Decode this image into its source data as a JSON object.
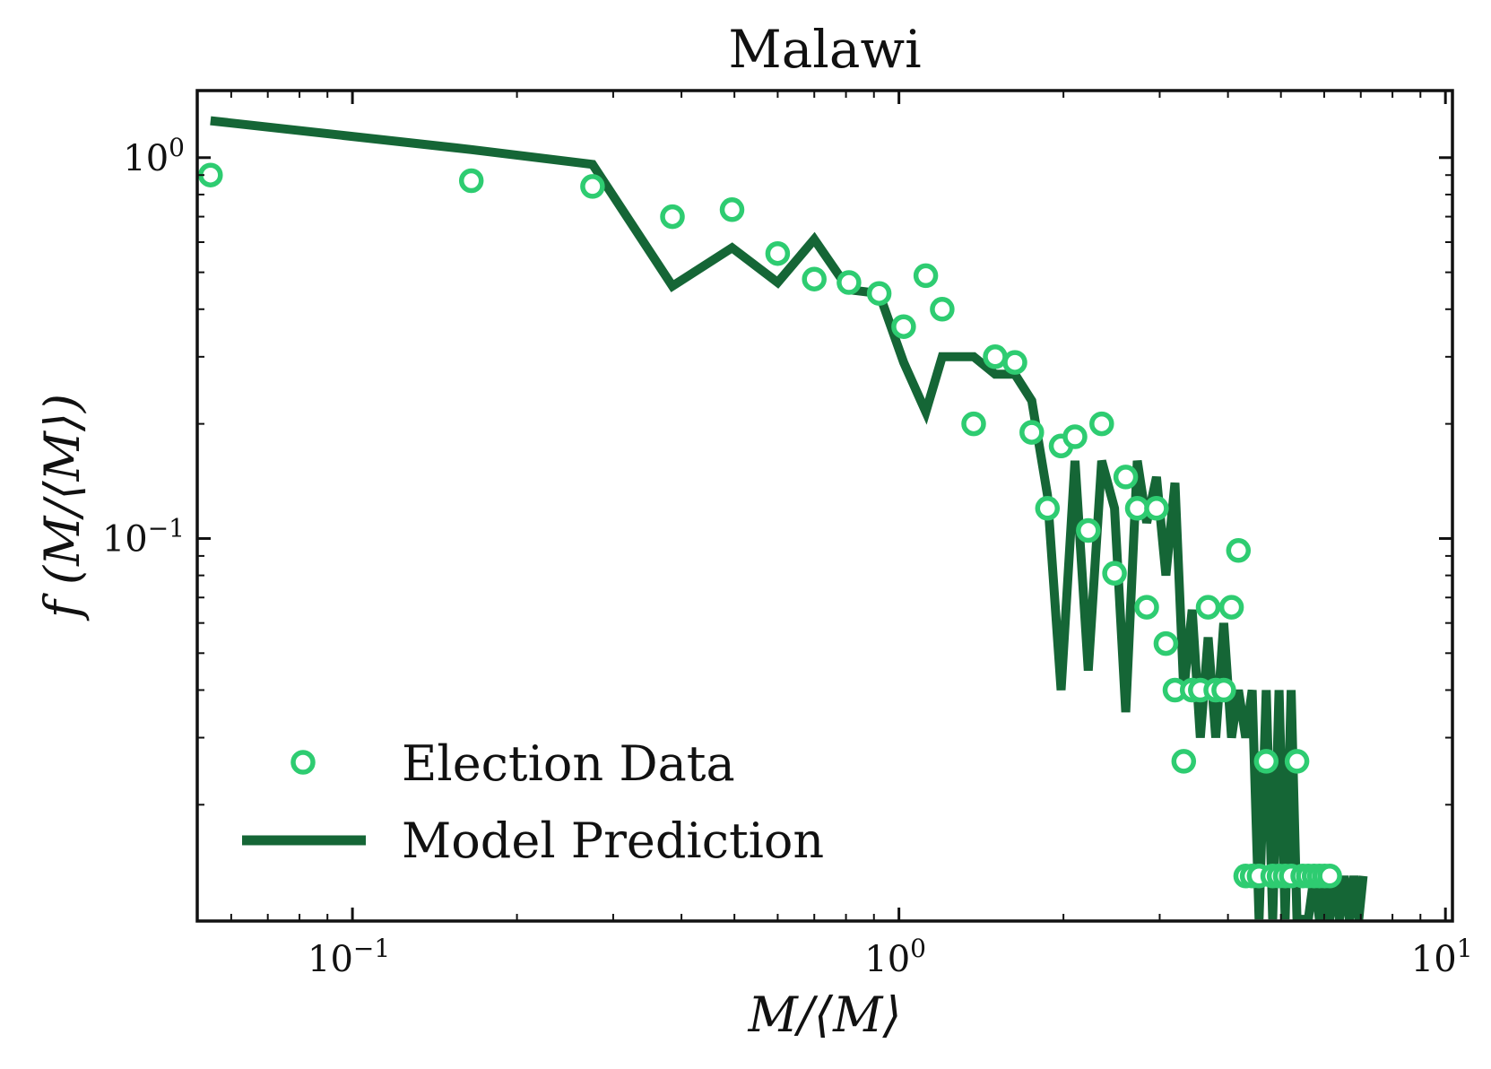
{
  "chart_data": {
    "type": "scatter",
    "title": "Malawi",
    "xlabel": "M/⟨M⟩",
    "ylabel": "f (M/⟨M⟩)",
    "xscale": "log",
    "yscale": "log",
    "xlim": [
      0.052,
      10.3
    ],
    "ylim": [
      0.0099,
      1.5
    ],
    "x_ticks": [
      {
        "value": 0.1,
        "base": "10",
        "exp": "−1"
      },
      {
        "value": 1,
        "base": "10",
        "exp": "0"
      },
      {
        "value": 10,
        "base": "10",
        "exp": "1"
      }
    ],
    "y_ticks": [
      {
        "value": 0.1,
        "base": "10",
        "exp": "−1"
      },
      {
        "value": 1,
        "base": "10",
        "exp": "0"
      }
    ],
    "grid": false,
    "legend_position": "lower-left",
    "colors": {
      "data": "#2ecc71",
      "model": "#156636",
      "axes": "#111111"
    },
    "series": [
      {
        "name": "Election Data",
        "kind": "scatter",
        "marker": "open-circle",
        "x": [
          0.055,
          0.165,
          0.275,
          0.385,
          0.495,
          0.6,
          0.7,
          0.81,
          0.92,
          1.02,
          1.12,
          1.2,
          1.37,
          1.5,
          1.63,
          1.75,
          1.87,
          1.98,
          2.1,
          2.22,
          2.35,
          2.48,
          2.6,
          2.73,
          2.84,
          2.96,
          3.08,
          3.2,
          3.32,
          3.44,
          3.56,
          3.68,
          3.8,
          3.93,
          4.06,
          4.18,
          4.31,
          4.43,
          4.56,
          4.7,
          4.83,
          4.96,
          5.09,
          5.22,
          5.35,
          5.48,
          5.61,
          5.75,
          5.88,
          6.01,
          6.14
        ],
        "y": [
          0.9,
          0.87,
          0.84,
          0.7,
          0.73,
          0.56,
          0.48,
          0.47,
          0.44,
          0.36,
          0.49,
          0.4,
          0.2,
          0.3,
          0.29,
          0.19,
          0.12,
          0.175,
          0.185,
          0.105,
          0.2,
          0.081,
          0.145,
          0.12,
          0.066,
          0.12,
          0.053,
          0.04,
          0.026,
          0.04,
          0.04,
          0.066,
          0.04,
          0.04,
          0.066,
          0.093,
          0.013,
          0.013,
          0.013,
          0.026,
          0.013,
          0.013,
          0.013,
          0.013,
          0.026,
          0.013,
          0.013,
          0.013,
          0.013,
          0.013,
          0.013
        ]
      },
      {
        "name": "Model Prediction",
        "kind": "line",
        "x": [
          0.055,
          0.165,
          0.275,
          0.385,
          0.495,
          0.6,
          0.7,
          0.81,
          0.92,
          1.02,
          1.12,
          1.2,
          1.37,
          1.5,
          1.63,
          1.75,
          1.87,
          1.98,
          2.1,
          2.22,
          2.35,
          2.48,
          2.6,
          2.73,
          2.84,
          2.96,
          3.08,
          3.2,
          3.32,
          3.44,
          3.56,
          3.68,
          3.8,
          3.93,
          4.06,
          4.18,
          4.31,
          4.43,
          4.56,
          4.7,
          4.83,
          4.96,
          5.09,
          5.22,
          5.35,
          5.48,
          5.61,
          5.75,
          5.88,
          6.01,
          6.14,
          6.27,
          6.4,
          6.53,
          6.67,
          6.8,
          6.94,
          7.07
        ],
        "y": [
          1.25,
          1.05,
          0.96,
          0.46,
          0.58,
          0.47,
          0.61,
          0.45,
          0.44,
          0.29,
          0.215,
          0.3,
          0.3,
          0.27,
          0.27,
          0.23,
          0.13,
          0.04,
          0.16,
          0.045,
          0.16,
          0.12,
          0.035,
          0.16,
          0.11,
          0.145,
          0.08,
          0.14,
          0.04,
          0.065,
          0.03,
          0.055,
          0.03,
          0.06,
          0.03,
          0.04,
          0.03,
          0.04,
          0.01,
          0.04,
          0.01,
          0.04,
          0.01,
          0.04,
          0.01,
          0.01,
          0.01,
          0.013,
          0.01,
          0.013,
          0.01,
          0.013,
          0.01,
          0.013,
          0.01,
          0.013,
          0.01,
          0.013
        ]
      }
    ]
  }
}
